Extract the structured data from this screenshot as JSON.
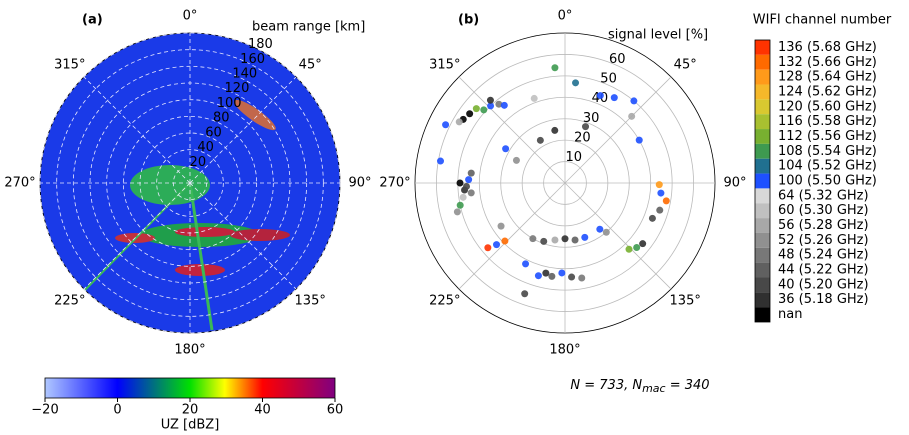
{
  "chart_data": [
    {
      "type": "polar-image",
      "panel_label": "(a)",
      "r_label": "beam range [km]",
      "rlim": [
        0,
        180
      ],
      "rticks": [
        20,
        40,
        60,
        80,
        100,
        120,
        140,
        160,
        180
      ],
      "angle_ticks": [
        {
          "value": 0,
          "label": "0°"
        },
        {
          "value": 45,
          "label": "45°"
        },
        {
          "value": 90,
          "label": "90°"
        },
        {
          "value": 135,
          "label": "135°"
        },
        {
          "value": 180,
          "label": "180°"
        },
        {
          "value": 225,
          "label": "225°"
        },
        {
          "value": 270,
          "label": "270°"
        },
        {
          "value": 315,
          "label": "315°"
        }
      ],
      "colorbar": {
        "label": "UZ [dBZ]",
        "lim": [
          -20,
          60
        ],
        "ticks": [
          {
            "value": -20,
            "label": "−20"
          },
          0,
          20,
          40,
          60
        ]
      }
    },
    {
      "type": "polar-scatter",
      "panel_label": "(b)",
      "r_label": "signal level [%]",
      "rlim": [
        0,
        70
      ],
      "rticks": [
        10,
        20,
        30,
        40,
        50,
        60
      ],
      "angle_ticks": [
        {
          "value": 0,
          "label": "0°"
        },
        {
          "value": 45,
          "label": "45°"
        },
        {
          "value": 90,
          "label": "90°"
        },
        {
          "value": 135,
          "label": "135°"
        },
        {
          "value": 180,
          "label": "180°"
        },
        {
          "value": 225,
          "label": "225°"
        },
        {
          "value": 270,
          "label": "270°"
        },
        {
          "value": 315,
          "label": "315°"
        }
      ],
      "theta": [
        316,
        318,
        312,
        320,
        306,
        302,
        300,
        296,
        310,
        322,
        266,
        268,
        262,
        272,
        258,
        276,
        280,
        255,
        270,
        264,
        230,
        226,
        228,
        236,
        192,
        188,
        196,
        200,
        182,
        176,
        170,
        206,
        200,
        190,
        180,
        170,
        210,
        160,
        143,
        140,
        136,
        132,
        128,
        106,
        100,
        91,
        96,
        112,
        6,
        22,
        30,
        45,
        40,
        349,
        330,
        295,
        340,
        355,
        300,
        20,
        60
      ],
      "r": [
        50,
        52,
        51,
        48,
        55,
        56,
        57,
        62,
        54,
        46,
        47,
        46,
        48,
        45,
        50,
        44,
        59,
        52,
        49,
        44,
        47,
        39,
        43,
        36,
        43,
        44,
        45,
        55,
        42,
        44,
        45,
        42,
        29,
        27,
        26,
        27,
        30,
        27,
        27,
        30,
        43,
        45,
        46,
        46,
        48,
        44,
        45,
        44,
        47,
        44,
        46,
        44,
        50,
        25,
        23,
        25,
        42,
        54,
        32,
        28,
        40
      ],
      "channel": [
        9,
        17,
        7,
        14,
        18,
        18,
        12,
        9,
        6,
        9,
        17,
        16,
        11,
        9,
        7,
        15,
        9,
        13,
        18,
        14,
        0,
        1,
        9,
        13,
        17,
        15,
        9,
        16,
        9,
        16,
        14,
        9,
        16,
        12,
        17,
        15,
        14,
        9,
        9,
        13,
        6,
        7,
        17,
        15,
        1,
        2,
        9,
        16,
        8,
        9,
        9,
        12,
        9,
        17,
        16,
        13,
        11,
        7,
        9,
        16,
        9
      ],
      "legend": {
        "title": "WIFI channel number",
        "labels": [
          "136 (5.68 GHz)",
          "132 (5.66 GHz)",
          "128 (5.64 GHz)",
          "124 (5.62 GHz)",
          "120 (5.60 GHz)",
          "116 (5.58 GHz)",
          "112 (5.56 GHz)",
          "108 (5.54 GHz)",
          "104 (5.52 GHz)",
          "100 (5.50 GHz)",
          "64 (5.32 GHz)",
          "60 (5.30 GHz)",
          "56 (5.28 GHz)",
          "52 (5.26 GHz)",
          "48 (5.24 GHz)",
          "44 (5.22 GHz)",
          "40 (5.20 GHz)",
          "36 (5.18 GHz)",
          "nan"
        ],
        "colors": [
          "#ff3300",
          "#ff6a00",
          "#ff9a1a",
          "#f5b82a",
          "#d9c830",
          "#a8c030",
          "#78b030",
          "#3e9a50",
          "#207090",
          "#1e50ff",
          "#d8d8d8",
          "#c0c0c0",
          "#a8a8a8",
          "#909090",
          "#787878",
          "#606060",
          "#484848",
          "#303030",
          "#000000"
        ]
      },
      "annotation": {
        "text": "N = 733, N",
        "sub": "mac",
        "rest": " = 340"
      }
    }
  ]
}
